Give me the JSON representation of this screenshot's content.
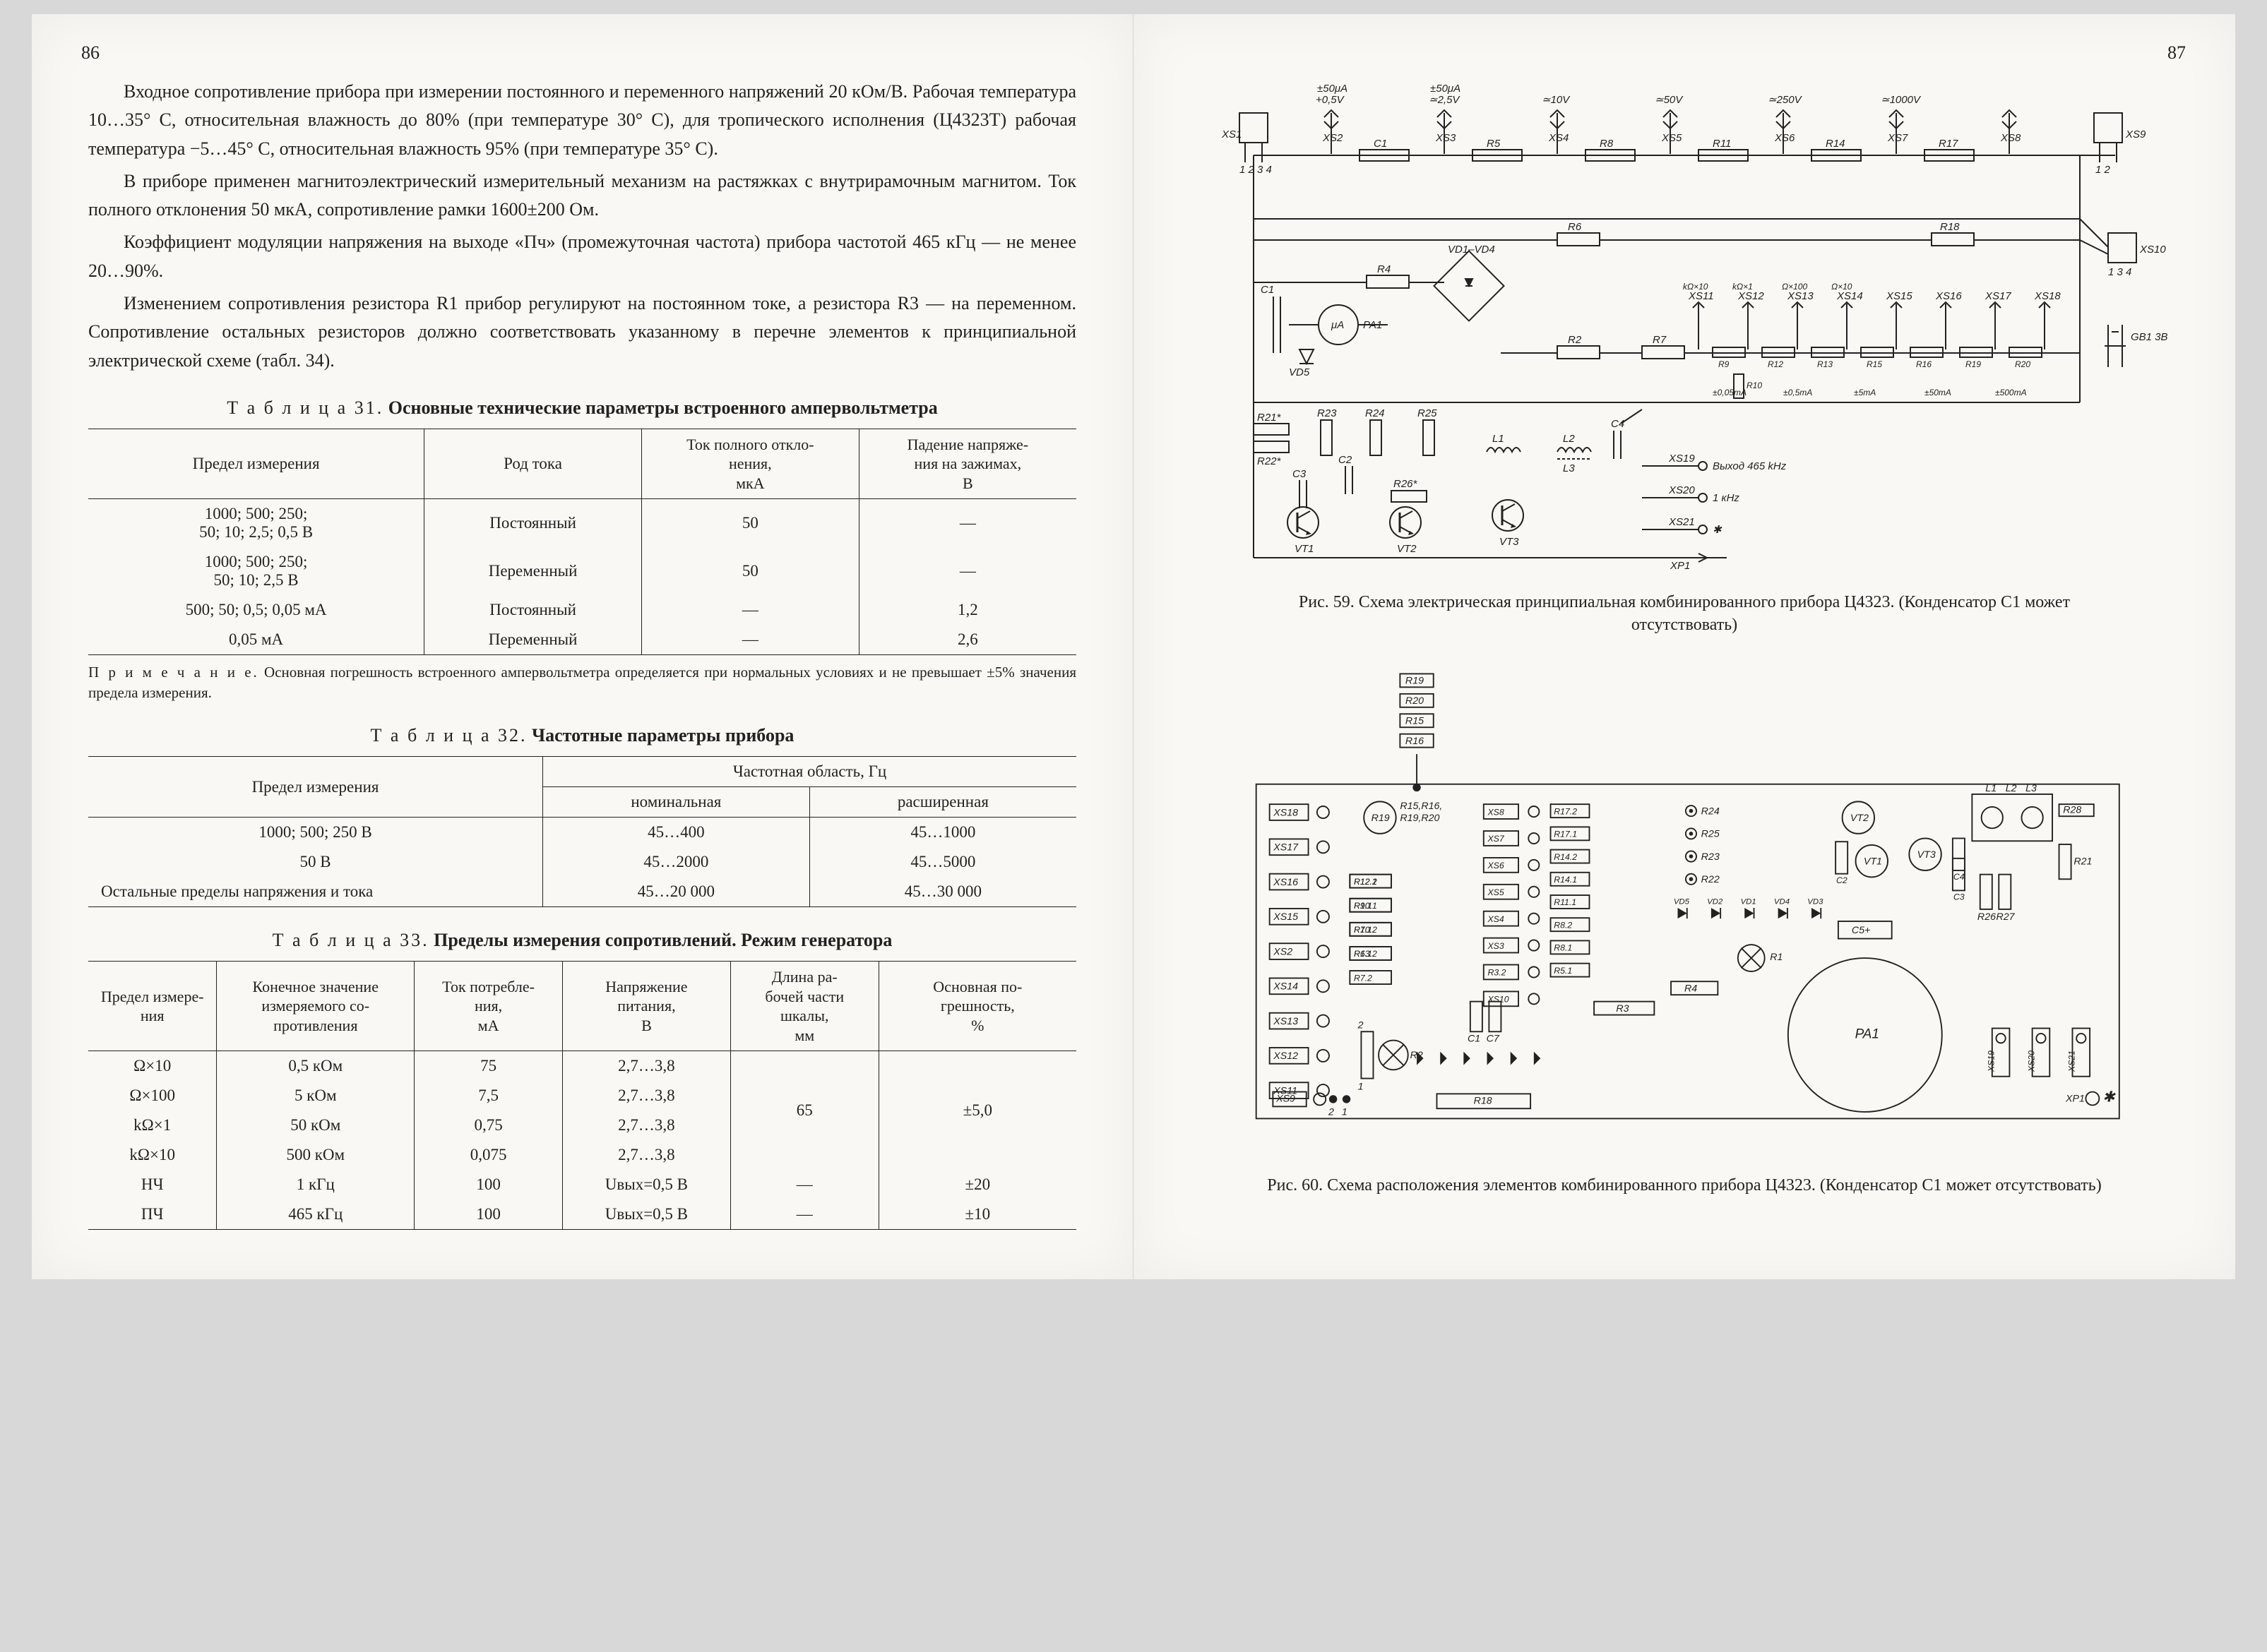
{
  "pageNumLeft": "86",
  "pageNumRight": "87",
  "paragraphs": [
    "Входное сопротивление прибора при измерении постоянного и переменного напряжений 20 кОм/В. Рабочая температура 10…35° С, относительная влажность до 80% (при температуре 30° С), для тропического исполнения (Ц4323Т) рабочая температура −5…45° С, относительная влажность 95% (при температуре 35° С).",
    "В приборе применен магнитоэлектрический измерительный механизм на растяжках с внутрирамочным магнитом. Ток полного отклонения 50 мкА, сопротивление рамки 1600±200 Ом.",
    "Коэффициент модуляции напряжения на выходе «Пч» (промежуточная частота) прибора частотой 465 кГц — не менее 20…90%.",
    "Изменением сопротивления резистора R1 прибор регулируют на постоянном токе, а резистора R3 — на переменном. Сопротивление остальных резисторов должно соответствовать указанному в перечне элементов к принципиальной электрической схеме (табл. 34)."
  ],
  "table31": {
    "titlePrefix": "Т а б л и ц а  31.",
    "titleBold": "Основные технические параметры встроенного ампервольтметра",
    "headers": [
      "Предел измерения",
      "Род тока",
      "Ток полного откло-\nнения,\nмкА",
      "Падение напряже-\nния на зажимах,\nВ"
    ],
    "rows": [
      [
        "1000; 500; 250;\n50; 10; 2,5; 0,5 В",
        "Постоянный",
        "50",
        "—"
      ],
      [
        "1000; 500; 250;\n50; 10; 2,5 В",
        "Переменный",
        "50",
        "—"
      ],
      [
        "500; 50; 0,5; 0,05 мА",
        "Постоянный",
        "—",
        "1,2"
      ],
      [
        "0,05 мА",
        "Переменный",
        "—",
        "2,6"
      ]
    ],
    "note": "Основная погрешность встроенного ампервольтметра определяется при нормальных условиях и не превышает ±5% значения предела измерения.",
    "noteLabel": "П р и м е ч а н и е."
  },
  "table32": {
    "titlePrefix": "Т а б л и ц а  32.",
    "titleBold": "Частотные параметры прибора",
    "h1": "Предел измерения",
    "h2": "Частотная область, Гц",
    "h2a": "номинальная",
    "h2b": "расширенная",
    "rows": [
      [
        "1000; 500; 250 В",
        "45…400",
        "45…1000"
      ],
      [
        "50 В",
        "45…2000",
        "45…5000"
      ],
      [
        "Остальные пределы напряжения и тока",
        "45…20 000",
        "45…30 000"
      ]
    ]
  },
  "table33": {
    "titlePrefix": "Т а б л и ц а  33.",
    "titleBold": "Пределы измерения сопротивлений. Режим генератора",
    "headers": [
      "Предел измере-\nния",
      "Конечное значение\nизмеряемого со-\nпротивления",
      "Ток потребле-\nния,\nмА",
      "Напряжение\nпитания,\nВ",
      "Длина ра-\nбочей части\nшкалы,\nмм",
      "Основная по-\nгрешность,\n%"
    ],
    "rows": [
      [
        "Ω×10",
        "0,5 кОм",
        "75",
        "2,7…3,8",
        "",
        ""
      ],
      [
        "Ω×100",
        "5 кОм",
        "7,5",
        "2,7…3,8",
        "",
        ""
      ],
      [
        "kΩ×1",
        "50 кОм",
        "0,75",
        "2,7…3,8",
        "65",
        "±5,0"
      ],
      [
        "kΩ×10",
        "500 кОм",
        "0,075",
        "2,7…3,8",
        "",
        ""
      ],
      [
        "НЧ",
        "1 кГц",
        "100",
        "Uвых=0,5 В",
        "—",
        "±20"
      ],
      [
        "ПЧ",
        "465 кГц",
        "100",
        "Uвых=0,5 В",
        "—",
        "±10"
      ]
    ]
  },
  "fig59": {
    "caption": "Рис. 59. Схема электрическая принципиальная комбинированного прибора Ц4323. (Конденсатор С1 может отсутствовать)",
    "topLabels": [
      "±50μA",
      "±50μA",
      "",
      "",
      ""
    ],
    "topLabels2": [
      "+0,5V",
      "≃2,5V",
      "≃10V",
      "≃50V",
      "≃250V",
      "≃1000V"
    ],
    "xsTop": [
      "XS1",
      "XS2",
      "XS3",
      "XS4",
      "XS5",
      "XS6",
      "XS7",
      "XS8",
      "XS9"
    ],
    "rTop": [
      "C1",
      "R5",
      "R8",
      "R11",
      "R14",
      "R17"
    ],
    "midRight": [
      "R6",
      "R18",
      "XS10"
    ],
    "midBlock": [
      "VD1–VD4",
      "PA1",
      "R4",
      "VD5",
      "C1",
      "R2",
      "R7"
    ],
    "xsMid": [
      "XS11",
      "XS12",
      "XS13",
      "XS14",
      "XS15",
      "XS16",
      "XS17",
      "XS18"
    ],
    "xsMidVals": [
      "kΩ×10",
      "kΩ×1",
      "Ω×100",
      "Ω×10",
      "",
      "",
      "",
      ""
    ],
    "rMid": [
      "R9",
      "R12",
      "R13",
      "R15",
      "R16",
      "R19",
      "R20"
    ],
    "rMid2": [
      "R10"
    ],
    "ampLabels": [
      "±0,05mA",
      "±0,5mA",
      "±5mA",
      "±50mA",
      "±500mA"
    ],
    "gb": "GB1\n3B",
    "oscBlock": [
      "R21*",
      "R22*",
      "R23",
      "R24",
      "R25",
      "R26*",
      "C2",
      "C3",
      "C4",
      "L1",
      "L2",
      "L3"
    ],
    "vt": [
      "VT1",
      "VT2",
      "VT3"
    ],
    "outLabels": [
      "XS19",
      "XS20",
      "XS21",
      "XP1"
    ],
    "outText": [
      "Выход 465 kHz",
      "1 кHz",
      "✱"
    ]
  },
  "fig60": {
    "caption": "Рис. 60. Схема расположения элементов комбинированного прибора Ц4323. (Конденсатор С1 может отсутствовать)",
    "topStack": [
      "R19",
      "R20",
      "R15",
      "R16"
    ],
    "leftXS": [
      "XS18",
      "XS17",
      "XS16",
      "XS15",
      "XS2",
      "XS14",
      "XS13",
      "XS12",
      "XS11"
    ],
    "leftBlocks": [
      "R19",
      "R15,R16,",
      "R19,R20",
      "R12.1",
      "R12.2",
      "R9.1",
      "R10.1",
      "R10.2",
      "R7.1",
      "R6.1",
      "R13.2",
      "R7.2"
    ],
    "centerXS": [
      "XS8",
      "XS7",
      "XS6",
      "XS5",
      "XS4",
      "XS3",
      "R3.2",
      "XS10"
    ],
    "centerBlocks": [
      "R17.2",
      "R17.1",
      "R14.2",
      "R14.1",
      "R11.1",
      "R8.2",
      "R8.1",
      "R5.1",
      "C5+",
      "R4",
      "R3"
    ],
    "rightSide": [
      "R24",
      "R25",
      "R23",
      "R22",
      "VD5",
      "VD2",
      "VD1",
      "VD4",
      "VD3"
    ],
    "chips": [
      "VT2",
      "VT1",
      "VT3",
      "C2",
      "C3",
      "C4"
    ],
    "coils": [
      "L1",
      "L2",
      "L3"
    ],
    "rRight": [
      "R28",
      "R26",
      "R27",
      "R21"
    ],
    "pa1": "PA1",
    "r1": "R1",
    "r2": "R2",
    "r2v": [
      "2",
      "1"
    ],
    "xsRight": [
      "XS19",
      "XS20",
      "XS21"
    ],
    "xp1": "XP1",
    "bottom": [
      "XS9",
      "R18"
    ],
    "c1d": [
      "C1",
      "C7"
    ]
  }
}
